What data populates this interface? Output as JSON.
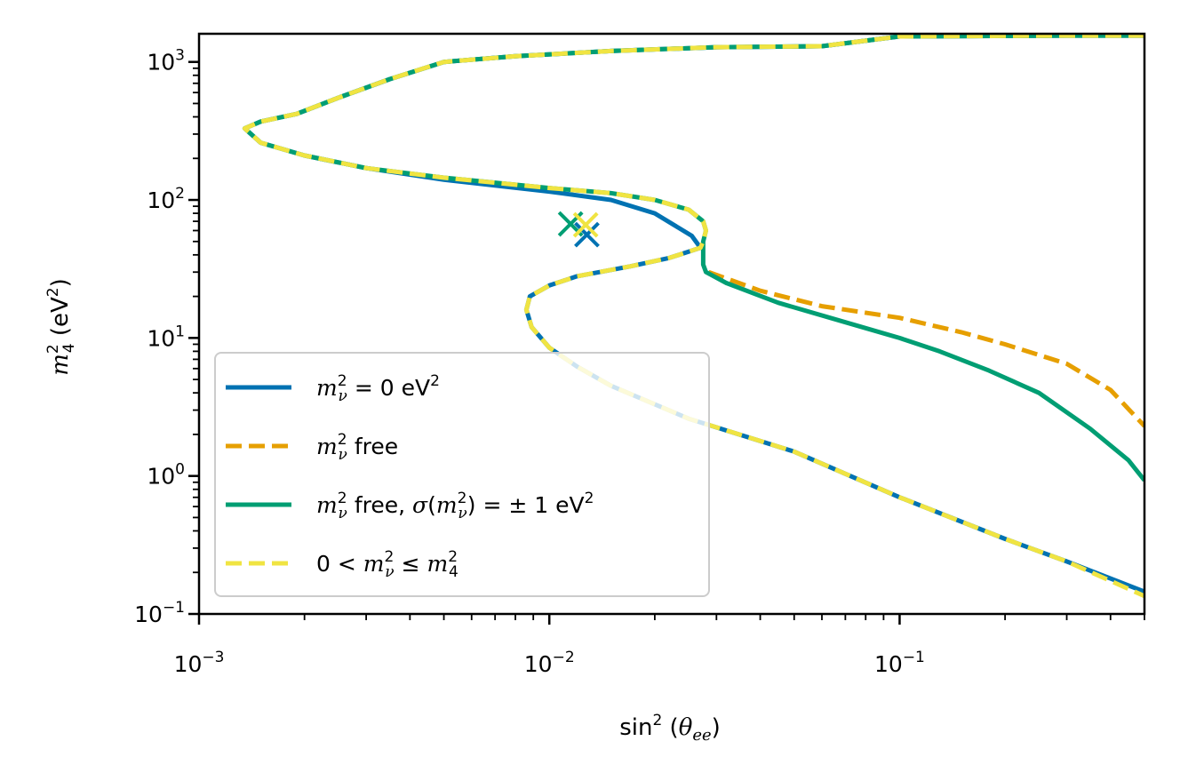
{
  "chart_data": {
    "type": "line",
    "x_scale": "log",
    "y_scale": "log",
    "xlim": [
      0.001,
      0.5
    ],
    "ylim": [
      0.1,
      1600
    ],
    "xlabel": "sin²(θee)",
    "ylabel": "m²4 (eV²)",
    "x_ticks": [
      {
        "value": 0.001,
        "base": "10",
        "exp": "−3"
      },
      {
        "value": 0.01,
        "base": "10",
        "exp": "−2"
      },
      {
        "value": 0.1,
        "base": "10",
        "exp": "−1"
      }
    ],
    "y_ticks": [
      {
        "value": 0.1,
        "base": "10",
        "exp": "−1"
      },
      {
        "value": 1,
        "base": "10",
        "exp": "0"
      },
      {
        "value": 10,
        "base": "10",
        "exp": "1"
      },
      {
        "value": 100,
        "base": "10",
        "exp": "2"
      },
      {
        "value": 1000,
        "base": "10",
        "exp": "3"
      }
    ],
    "series": [
      {
        "name": "mν² = 0 eV²",
        "legend": {
          "m": "m",
          "sup": "2",
          "sub": "ν",
          "rest": " = 0 eV",
          "tail_sup": "2"
        },
        "color": "#0072B2",
        "dash": "solid",
        "segments": [
          [
            [
              0.5,
              1550
            ],
            [
              0.3,
              1550
            ],
            [
              0.1,
              1530
            ],
            [
              0.06,
              1300
            ],
            [
              0.03,
              1280
            ],
            [
              0.015,
              1200
            ],
            [
              0.008,
              1100
            ],
            [
              0.005,
              1000
            ],
            [
              0.0035,
              750
            ],
            [
              0.0025,
              550
            ],
            [
              0.0019,
              420
            ],
            [
              0.0015,
              370
            ],
            [
              0.00135,
              330
            ],
            [
              0.0015,
              260
            ],
            [
              0.002,
              210
            ],
            [
              0.003,
              170
            ],
            [
              0.005,
              140
            ],
            [
              0.01,
              115
            ],
            [
              0.015,
              100
            ],
            [
              0.02,
              80
            ],
            [
              0.0255,
              55
            ],
            [
              0.027,
              45
            ],
            [
              0.022,
              38
            ],
            [
              0.017,
              33
            ],
            [
              0.012,
              28
            ],
            [
              0.01,
              24
            ],
            [
              0.0088,
              20
            ],
            [
              0.0086,
              16
            ],
            [
              0.0089,
              12
            ],
            [
              0.01,
              8.5
            ],
            [
              0.012,
              6.2
            ],
            [
              0.015,
              4.5
            ],
            [
              0.025,
              2.6
            ],
            [
              0.05,
              1.5
            ],
            [
              0.1,
              0.7
            ],
            [
              0.2,
              0.35
            ],
            [
              0.3,
              0.24
            ],
            [
              0.5,
              0.145
            ]
          ]
        ]
      },
      {
        "name": "mν² free",
        "legend": {
          "m": "m",
          "sup": "2",
          "sub": "ν",
          "rest": " free",
          "tail_sup": ""
        },
        "color": "#E69F00",
        "dash": "dashed",
        "segments": [
          [
            [
              0.0285,
              30
            ],
            [
              0.04,
              22
            ],
            [
              0.06,
              17
            ],
            [
              0.1,
              14
            ],
            [
              0.15,
              11
            ],
            [
              0.2,
              9
            ],
            [
              0.3,
              6.5
            ],
            [
              0.4,
              4.2
            ],
            [
              0.5,
              2.3
            ]
          ]
        ]
      },
      {
        "name": "mν² free, σ(mν²) = ±1 eV²",
        "legend": {
          "m": "m",
          "sup": "2",
          "sub": "ν",
          "rest": " free, σ(m",
          "tail_sup": "2"
        },
        "color": "#009E73",
        "dash": "solid",
        "segments": [
          [
            [
              0.5,
              1550
            ],
            [
              0.3,
              1550
            ],
            [
              0.1,
              1530
            ],
            [
              0.06,
              1300
            ],
            [
              0.03,
              1280
            ],
            [
              0.015,
              1200
            ],
            [
              0.008,
              1100
            ],
            [
              0.005,
              1000
            ],
            [
              0.0035,
              750
            ],
            [
              0.0025,
              550
            ],
            [
              0.0019,
              420
            ],
            [
              0.0015,
              370
            ],
            [
              0.00135,
              330
            ],
            [
              0.0015,
              260
            ],
            [
              0.002,
              210
            ],
            [
              0.003,
              170
            ],
            [
              0.005,
              145
            ],
            [
              0.01,
              122
            ],
            [
              0.015,
              112
            ],
            [
              0.02,
              100
            ],
            [
              0.025,
              85
            ],
            [
              0.0275,
              70
            ],
            [
              0.028,
              60
            ],
            [
              0.0275,
              50
            ],
            [
              0.0275,
              40
            ],
            [
              0.0275,
              34
            ],
            [
              0.028,
              30
            ],
            [
              0.032,
              25
            ],
            [
              0.045,
              18
            ],
            [
              0.07,
              13
            ],
            [
              0.1,
              10
            ],
            [
              0.13,
              8
            ],
            [
              0.18,
              5.8
            ],
            [
              0.25,
              4
            ],
            [
              0.35,
              2.2
            ],
            [
              0.45,
              1.3
            ],
            [
              0.5,
              0.93
            ]
          ]
        ]
      },
      {
        "name": "0 < mν² ≤ m4²",
        "legend": {
          "m": "m",
          "sup": "2",
          "sub": "ν",
          "rest": "",
          "tail_sup": "2"
        },
        "color": "#F0E442",
        "dash": "dashed",
        "segments": [
          [
            [
              0.5,
              1550
            ],
            [
              0.3,
              1550
            ],
            [
              0.1,
              1530
            ],
            [
              0.06,
              1300
            ],
            [
              0.03,
              1280
            ],
            [
              0.015,
              1200
            ],
            [
              0.008,
              1100
            ],
            [
              0.005,
              1000
            ],
            [
              0.0035,
              750
            ],
            [
              0.0025,
              550
            ],
            [
              0.0019,
              420
            ],
            [
              0.0015,
              370
            ],
            [
              0.00135,
              330
            ],
            [
              0.0015,
              260
            ],
            [
              0.002,
              210
            ],
            [
              0.003,
              170
            ],
            [
              0.005,
              145
            ],
            [
              0.01,
              122
            ],
            [
              0.015,
              112
            ],
            [
              0.02,
              100
            ],
            [
              0.025,
              85
            ],
            [
              0.0275,
              70
            ],
            [
              0.028,
              60
            ],
            [
              0.0275,
              50
            ],
            [
              0.027,
              45
            ],
            [
              0.022,
              38
            ],
            [
              0.017,
              33
            ],
            [
              0.012,
              28
            ],
            [
              0.01,
              24
            ],
            [
              0.0088,
              20
            ],
            [
              0.0086,
              16
            ],
            [
              0.0089,
              12
            ],
            [
              0.01,
              8.5
            ],
            [
              0.012,
              6.2
            ],
            [
              0.015,
              4.5
            ],
            [
              0.025,
              2.6
            ],
            [
              0.05,
              1.5
            ],
            [
              0.1,
              0.7
            ],
            [
              0.2,
              0.35
            ],
            [
              0.3,
              0.24
            ],
            [
              0.5,
              0.135
            ]
          ]
        ]
      }
    ],
    "markers": [
      {
        "series": "mν² = 0 eV²",
        "x": 0.0128,
        "y": 56,
        "color": "#0072B2"
      },
      {
        "series": "mν² free, σ(mν²) = ±1 eV²",
        "x": 0.0115,
        "y": 67,
        "color": "#009E73"
      },
      {
        "series": "0 < mν² ≤ m4²",
        "x": 0.0127,
        "y": 66,
        "color": "#F0E442"
      }
    ],
    "legend_position": "lower-left"
  }
}
